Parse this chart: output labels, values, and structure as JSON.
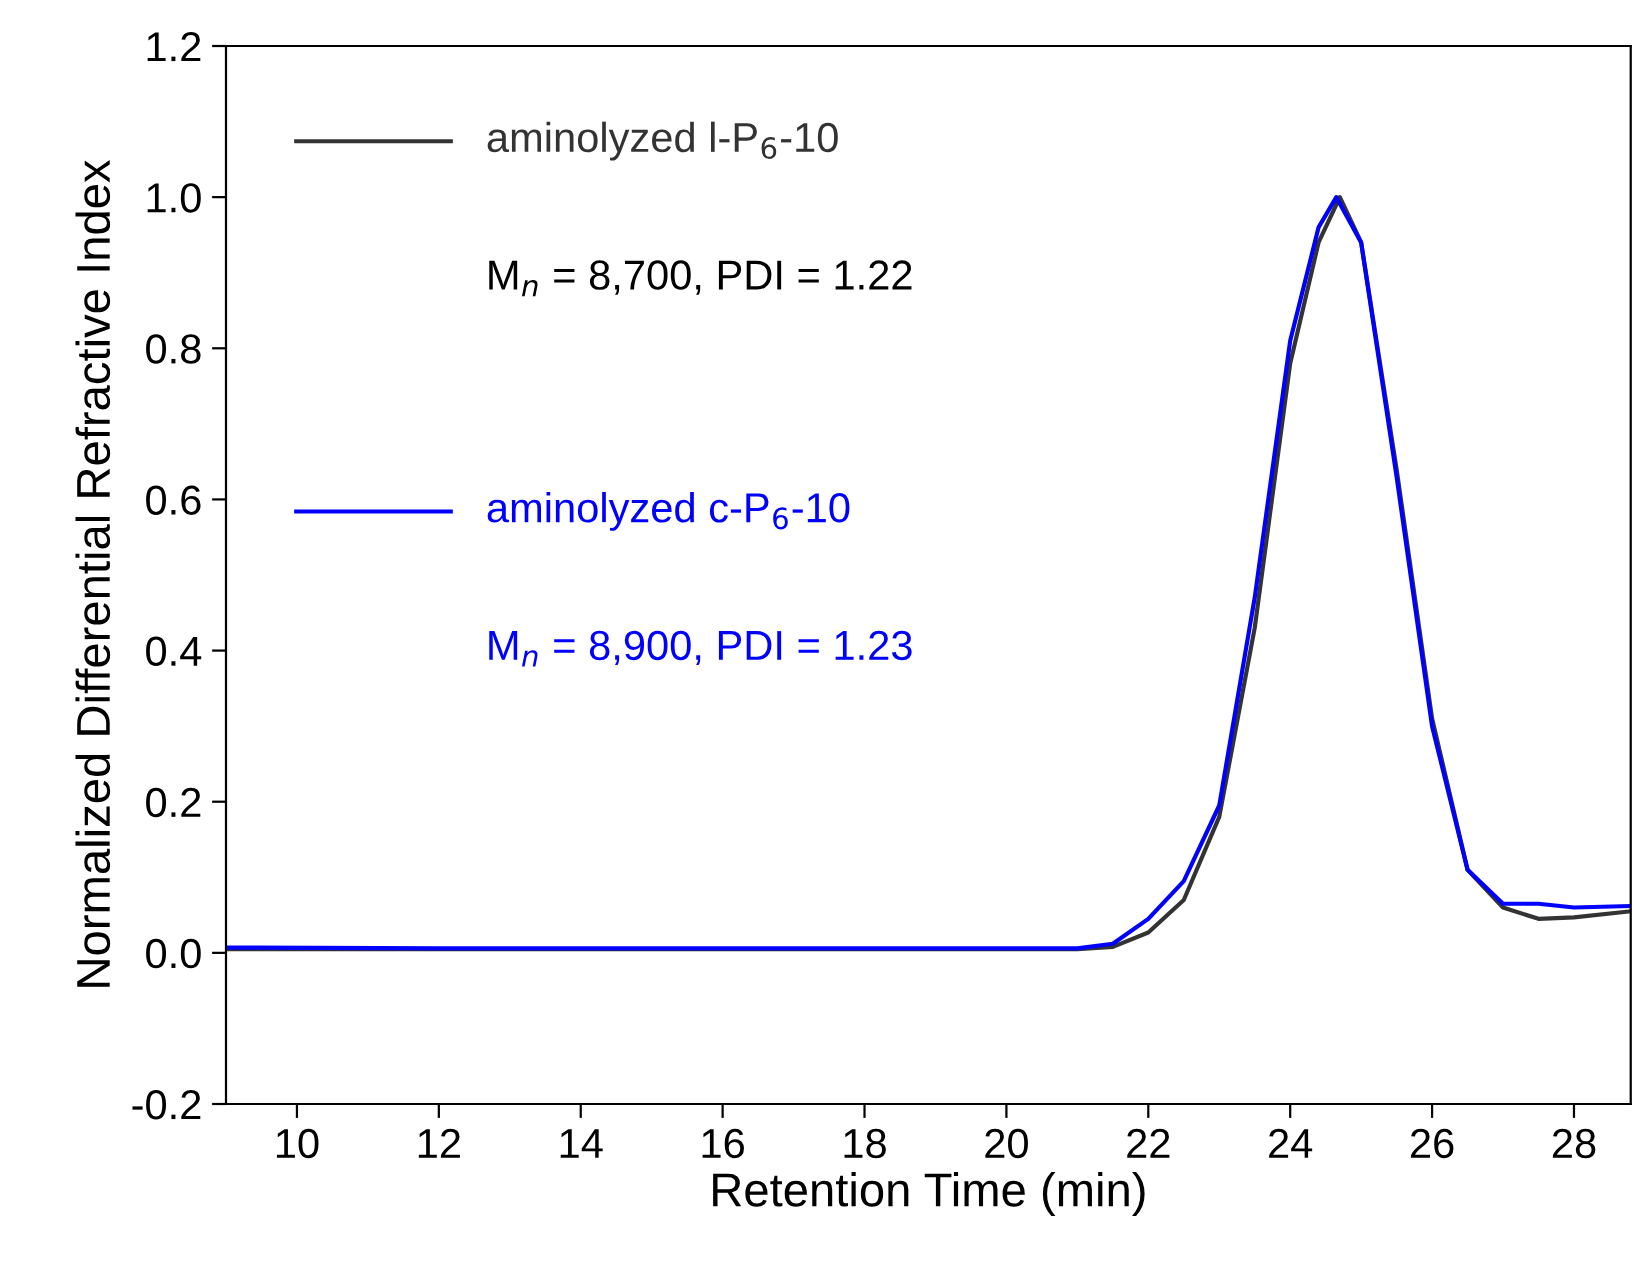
{
  "chart_data": {
    "type": "line",
    "xlabel": "Retention Time (min)",
    "ylabel": "Normalized Differential Refractive Index",
    "xlim": [
      9,
      28.8
    ],
    "ylim": [
      -0.2,
      1.2
    ],
    "xticks": [
      10,
      12,
      14,
      16,
      18,
      20,
      22,
      24,
      26,
      28
    ],
    "yticks": [
      {
        "value": -0.2,
        "label": "-0.2"
      },
      {
        "value": 0,
        "label": "0.0"
      },
      {
        "value": 0.2,
        "label": "0.2"
      },
      {
        "value": 0.4,
        "label": "0.4"
      },
      {
        "value": 0.6,
        "label": "0.6"
      },
      {
        "value": 0.8,
        "label": "0.8"
      },
      {
        "value": 1.0,
        "label": "1.0"
      },
      {
        "value": 1.2,
        "label": "1.2"
      }
    ],
    "grid": false,
    "legend": "top left",
    "marker": "none",
    "line_style": "solid",
    "series": [
      {
        "name": "aminolyzed l-P$_{6}$-10",
        "color": "#333333",
        "x": [
          9,
          12,
          15,
          18,
          21,
          21.5,
          22,
          22.5,
          23,
          23.5,
          24,
          24.4,
          24.7,
          25,
          25.5,
          26,
          26.5,
          27,
          27.5,
          28,
          28.8
        ],
        "values": [
          0.005,
          0.005,
          0.005,
          0.005,
          0.005,
          0.008,
          0.027,
          0.07,
          0.18,
          0.43,
          0.78,
          0.94,
          1.0,
          0.94,
          0.64,
          0.31,
          0.11,
          0.06,
          0.045,
          0.047,
          0.055
        ]
      },
      {
        "name": "aminolyzed c-P$_{6}$-10",
        "color": "#0000ff",
        "x": [
          9,
          12,
          15,
          18,
          21,
          21.5,
          22,
          22.5,
          23,
          23.5,
          24,
          24.4,
          24.65,
          25,
          25.5,
          26,
          26.5,
          27,
          27.5,
          28,
          28.8
        ],
        "values": [
          0.007,
          0.006,
          0.006,
          0.006,
          0.006,
          0.012,
          0.045,
          0.095,
          0.195,
          0.47,
          0.81,
          0.96,
          1.0,
          0.94,
          0.63,
          0.3,
          0.11,
          0.065,
          0.065,
          0.06,
          0.062
        ]
      }
    ],
    "annotations": [
      "M$_{n}$ = 8,700, PDI = 1.22",
      "M$_{n}$ = 8,900, PDI = 1.23"
    ]
  }
}
